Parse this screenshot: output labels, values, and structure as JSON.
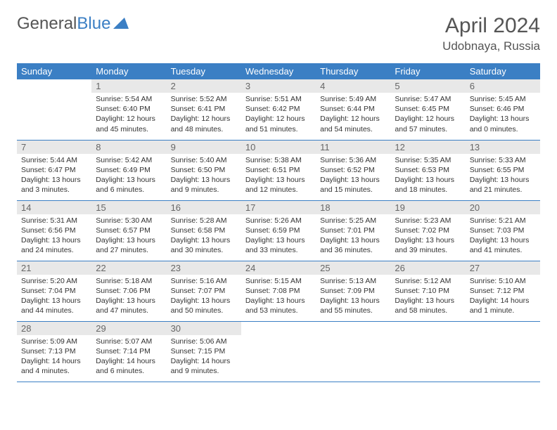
{
  "logo": {
    "text1": "General",
    "text2": "Blue"
  },
  "title": "April 2024",
  "location": "Udobnaya, Russia",
  "colors": {
    "header_bg": "#3b7fc4",
    "header_text": "#ffffff",
    "daynum_bg": "#e8e8e8",
    "border": "#3b7fc4",
    "body_bg": "#ffffff"
  },
  "typography": {
    "title_fontsize": 30,
    "location_fontsize": 17,
    "dayhead_fontsize": 13,
    "cell_fontsize": 10.5
  },
  "day_headers": [
    "Sunday",
    "Monday",
    "Tuesday",
    "Wednesday",
    "Thursday",
    "Friday",
    "Saturday"
  ],
  "weeks": [
    [
      {
        "n": "",
        "sr": "",
        "ss": "",
        "dl": ""
      },
      {
        "n": "1",
        "sr": "Sunrise: 5:54 AM",
        "ss": "Sunset: 6:40 PM",
        "dl": "Daylight: 12 hours and 45 minutes."
      },
      {
        "n": "2",
        "sr": "Sunrise: 5:52 AM",
        "ss": "Sunset: 6:41 PM",
        "dl": "Daylight: 12 hours and 48 minutes."
      },
      {
        "n": "3",
        "sr": "Sunrise: 5:51 AM",
        "ss": "Sunset: 6:42 PM",
        "dl": "Daylight: 12 hours and 51 minutes."
      },
      {
        "n": "4",
        "sr": "Sunrise: 5:49 AM",
        "ss": "Sunset: 6:44 PM",
        "dl": "Daylight: 12 hours and 54 minutes."
      },
      {
        "n": "5",
        "sr": "Sunrise: 5:47 AM",
        "ss": "Sunset: 6:45 PM",
        "dl": "Daylight: 12 hours and 57 minutes."
      },
      {
        "n": "6",
        "sr": "Sunrise: 5:45 AM",
        "ss": "Sunset: 6:46 PM",
        "dl": "Daylight: 13 hours and 0 minutes."
      }
    ],
    [
      {
        "n": "7",
        "sr": "Sunrise: 5:44 AM",
        "ss": "Sunset: 6:47 PM",
        "dl": "Daylight: 13 hours and 3 minutes."
      },
      {
        "n": "8",
        "sr": "Sunrise: 5:42 AM",
        "ss": "Sunset: 6:49 PM",
        "dl": "Daylight: 13 hours and 6 minutes."
      },
      {
        "n": "9",
        "sr": "Sunrise: 5:40 AM",
        "ss": "Sunset: 6:50 PM",
        "dl": "Daylight: 13 hours and 9 minutes."
      },
      {
        "n": "10",
        "sr": "Sunrise: 5:38 AM",
        "ss": "Sunset: 6:51 PM",
        "dl": "Daylight: 13 hours and 12 minutes."
      },
      {
        "n": "11",
        "sr": "Sunrise: 5:36 AM",
        "ss": "Sunset: 6:52 PM",
        "dl": "Daylight: 13 hours and 15 minutes."
      },
      {
        "n": "12",
        "sr": "Sunrise: 5:35 AM",
        "ss": "Sunset: 6:53 PM",
        "dl": "Daylight: 13 hours and 18 minutes."
      },
      {
        "n": "13",
        "sr": "Sunrise: 5:33 AM",
        "ss": "Sunset: 6:55 PM",
        "dl": "Daylight: 13 hours and 21 minutes."
      }
    ],
    [
      {
        "n": "14",
        "sr": "Sunrise: 5:31 AM",
        "ss": "Sunset: 6:56 PM",
        "dl": "Daylight: 13 hours and 24 minutes."
      },
      {
        "n": "15",
        "sr": "Sunrise: 5:30 AM",
        "ss": "Sunset: 6:57 PM",
        "dl": "Daylight: 13 hours and 27 minutes."
      },
      {
        "n": "16",
        "sr": "Sunrise: 5:28 AM",
        "ss": "Sunset: 6:58 PM",
        "dl": "Daylight: 13 hours and 30 minutes."
      },
      {
        "n": "17",
        "sr": "Sunrise: 5:26 AM",
        "ss": "Sunset: 6:59 PM",
        "dl": "Daylight: 13 hours and 33 minutes."
      },
      {
        "n": "18",
        "sr": "Sunrise: 5:25 AM",
        "ss": "Sunset: 7:01 PM",
        "dl": "Daylight: 13 hours and 36 minutes."
      },
      {
        "n": "19",
        "sr": "Sunrise: 5:23 AM",
        "ss": "Sunset: 7:02 PM",
        "dl": "Daylight: 13 hours and 39 minutes."
      },
      {
        "n": "20",
        "sr": "Sunrise: 5:21 AM",
        "ss": "Sunset: 7:03 PM",
        "dl": "Daylight: 13 hours and 41 minutes."
      }
    ],
    [
      {
        "n": "21",
        "sr": "Sunrise: 5:20 AM",
        "ss": "Sunset: 7:04 PM",
        "dl": "Daylight: 13 hours and 44 minutes."
      },
      {
        "n": "22",
        "sr": "Sunrise: 5:18 AM",
        "ss": "Sunset: 7:06 PM",
        "dl": "Daylight: 13 hours and 47 minutes."
      },
      {
        "n": "23",
        "sr": "Sunrise: 5:16 AM",
        "ss": "Sunset: 7:07 PM",
        "dl": "Daylight: 13 hours and 50 minutes."
      },
      {
        "n": "24",
        "sr": "Sunrise: 5:15 AM",
        "ss": "Sunset: 7:08 PM",
        "dl": "Daylight: 13 hours and 53 minutes."
      },
      {
        "n": "25",
        "sr": "Sunrise: 5:13 AM",
        "ss": "Sunset: 7:09 PM",
        "dl": "Daylight: 13 hours and 55 minutes."
      },
      {
        "n": "26",
        "sr": "Sunrise: 5:12 AM",
        "ss": "Sunset: 7:10 PM",
        "dl": "Daylight: 13 hours and 58 minutes."
      },
      {
        "n": "27",
        "sr": "Sunrise: 5:10 AM",
        "ss": "Sunset: 7:12 PM",
        "dl": "Daylight: 14 hours and 1 minute."
      }
    ],
    [
      {
        "n": "28",
        "sr": "Sunrise: 5:09 AM",
        "ss": "Sunset: 7:13 PM",
        "dl": "Daylight: 14 hours and 4 minutes."
      },
      {
        "n": "29",
        "sr": "Sunrise: 5:07 AM",
        "ss": "Sunset: 7:14 PM",
        "dl": "Daylight: 14 hours and 6 minutes."
      },
      {
        "n": "30",
        "sr": "Sunrise: 5:06 AM",
        "ss": "Sunset: 7:15 PM",
        "dl": "Daylight: 14 hours and 9 minutes."
      },
      {
        "n": "",
        "sr": "",
        "ss": "",
        "dl": ""
      },
      {
        "n": "",
        "sr": "",
        "ss": "",
        "dl": ""
      },
      {
        "n": "",
        "sr": "",
        "ss": "",
        "dl": ""
      },
      {
        "n": "",
        "sr": "",
        "ss": "",
        "dl": ""
      }
    ]
  ]
}
